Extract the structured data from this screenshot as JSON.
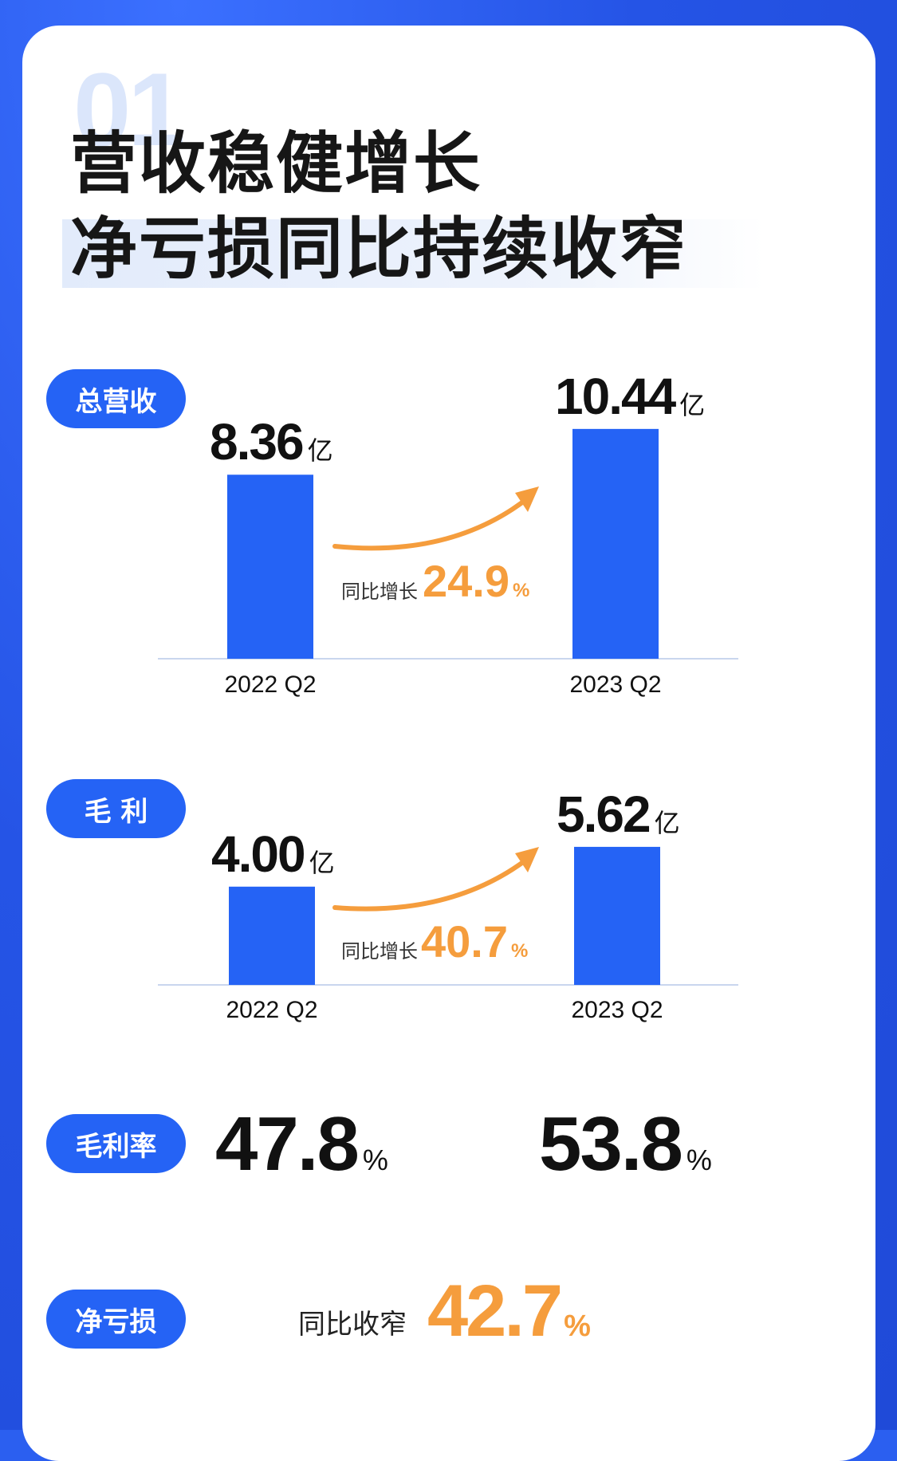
{
  "header": {
    "section_number": "01",
    "title_line1": "营收稳健增长",
    "title_line2": "净亏损同比持续收窄"
  },
  "colors": {
    "accent": "#2563f5",
    "growth": "#f59d3d",
    "background": "#2b5ff0"
  },
  "chart_data": [
    {
      "type": "bar",
      "label": "总营收",
      "categories": [
        "2022 Q2",
        "2023 Q2"
      ],
      "values": [
        8.36,
        10.44
      ],
      "value_labels": [
        "8.36",
        "10.44"
      ],
      "unit": "亿",
      "growth_label": "同比增长",
      "growth_value": "24.9",
      "growth_unit": "%"
    },
    {
      "type": "bar",
      "label": "毛 利",
      "categories": [
        "2022 Q2",
        "2023 Q2"
      ],
      "values": [
        4.0,
        5.62
      ],
      "value_labels": [
        "4.00",
        "5.62"
      ],
      "unit": "亿",
      "growth_label": "同比增长",
      "growth_value": "40.7",
      "growth_unit": "%"
    }
  ],
  "gross_margin": {
    "label": "毛利率",
    "values": [
      "47.8",
      "53.8"
    ],
    "unit": "%"
  },
  "net_loss": {
    "label": "净亏损",
    "change_label": "同比收窄",
    "change_value": "42.7",
    "unit": "%"
  }
}
